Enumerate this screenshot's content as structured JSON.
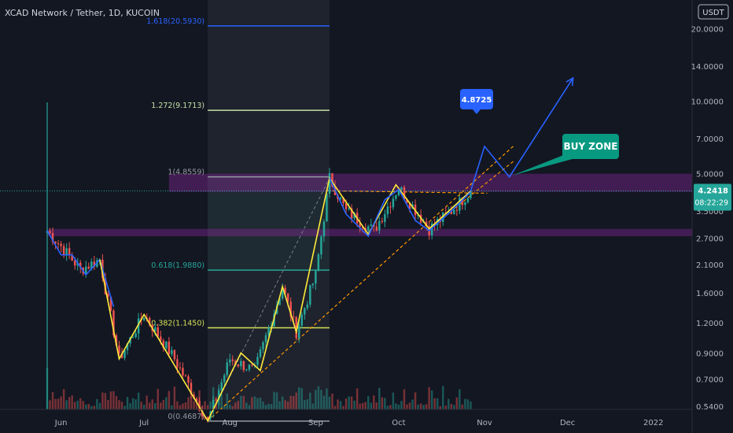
{
  "header": {
    "symbol_title": "XCAD Network / Tether, 1D, KUCOIN"
  },
  "currency_badge": "USDT",
  "last_price": {
    "value": "4.2418",
    "countdown": "08:22:29"
  },
  "colors": {
    "background": "#131722",
    "candle_up": "#26a69a",
    "candle_down": "#ef5350",
    "fib_level_1618": "#2962ff",
    "fib_level_1272": "#c5e1a5",
    "fib_level_1": "#9598a1",
    "fib_level_0618": "#26a69a",
    "fib_level_0382": "#d4e157",
    "purple_zone": "#9c27b0",
    "pattern_yellow": "#ffeb3b",
    "pattern_blue": "#2962ff",
    "trend_orange": "#ff9800",
    "buy_zone_callout": "#089981"
  },
  "chart_data": {
    "type": "candlestick",
    "title": "XCAD Network / Tether, 1D, KUCOIN",
    "y_scale": "log",
    "ylim": [
      0.46,
      23
    ],
    "y_ticks": [
      "20.0000",
      "14.0000",
      "10.0000",
      "7.0000",
      "5.0000",
      "3.5000",
      "2.7000",
      "2.1000",
      "1.6000",
      "1.2000",
      "0.9000",
      "0.7000",
      "0.5400"
    ],
    "x_ticks": [
      "Jun",
      "Jul",
      "Aug",
      "Sep",
      "Oct",
      "Nov",
      "Dec",
      "2022"
    ],
    "fib_levels": [
      {
        "label": "1.618(20.5930)",
        "ratio": 1.618,
        "price": 20.593
      },
      {
        "label": "1.272(9.1713)",
        "ratio": 1.272,
        "price": 9.1713
      },
      {
        "label": "1(4.8559)",
        "ratio": 1,
        "price": 4.8559
      },
      {
        "label": "0.618(1.9880)",
        "ratio": 0.618,
        "price": 1.988
      },
      {
        "label": "0.382(1.1450)",
        "ratio": 0.382,
        "price": 1.145
      },
      {
        "label": "0(0.4687)",
        "ratio": 0,
        "price": 0.4687
      }
    ],
    "zones": [
      {
        "name": "resistance-zone",
        "from": 4.2,
        "to": 5.0
      },
      {
        "name": "support-zone",
        "from": 2.75,
        "to": 2.95
      }
    ],
    "anchors": {
      "start": "2021-05-27",
      "end": "2022-01-15"
    },
    "series_keypoints": [
      {
        "date": "2021-05-27",
        "close": 2.9
      },
      {
        "date": "2021-06-01",
        "close": 2.5
      },
      {
        "date": "2021-06-08",
        "close": 2.0
      },
      {
        "date": "2021-06-15",
        "close": 2.2
      },
      {
        "date": "2021-06-22",
        "close": 0.85
      },
      {
        "date": "2021-07-01",
        "close": 1.3
      },
      {
        "date": "2021-07-12",
        "close": 0.85
      },
      {
        "date": "2021-07-24",
        "close": 0.47
      },
      {
        "date": "2021-08-01",
        "close": 0.85
      },
      {
        "date": "2021-08-10",
        "close": 0.76
      },
      {
        "date": "2021-08-20",
        "close": 1.7
      },
      {
        "date": "2021-08-25",
        "close": 1.1
      },
      {
        "date": "2021-09-01",
        "close": 1.9
      },
      {
        "date": "2021-09-06",
        "close": 4.8
      },
      {
        "date": "2021-09-12",
        "close": 3.5
      },
      {
        "date": "2021-09-22",
        "close": 2.9
      },
      {
        "date": "2021-10-01",
        "close": 4.4
      },
      {
        "date": "2021-10-12",
        "close": 2.95
      },
      {
        "date": "2021-10-20",
        "close": 3.5
      },
      {
        "date": "2021-10-27",
        "close": 4.24
      }
    ],
    "projection": [
      {
        "date": "2021-11-01",
        "price": 6.5
      },
      {
        "date": "2021-11-10",
        "price": 4.85
      },
      {
        "date": "2021-12-03",
        "price": 12.5
      }
    ],
    "annotations": [
      {
        "text": "4.8725",
        "kind": "price-callout"
      },
      {
        "text": "BUY ZONE",
        "kind": "text-callout"
      }
    ]
  }
}
